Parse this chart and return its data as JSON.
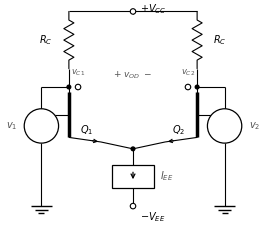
{
  "bg_color": "#ffffff",
  "line_color": "#000000",
  "figsize": [
    2.66,
    2.29
  ],
  "dpi": 100,
  "vcc_label": "$+V_{CC}$",
  "vee_label": "$-V_{EE}$",
  "rc_left_label": "$R_C$",
  "rc_right_label": "$R_C$",
  "iee_label": "$I_{EE}$",
  "vod_label": "$+ \\ v_{OD} \\ -$",
  "vc1_label": "$v_{C1}$",
  "vc2_label": "$v_{C2}$",
  "q1_label": "$Q_1$",
  "q2_label": "$Q_2$",
  "v1_label": "$v_1$",
  "v2_label": "$v_2$",
  "plus_label": "$+$",
  "minus_label": "$-$"
}
